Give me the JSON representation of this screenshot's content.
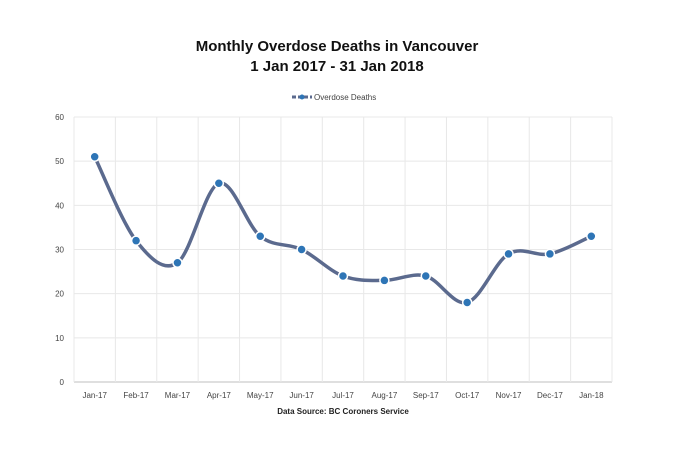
{
  "chart_data": {
    "type": "line",
    "title": "Monthly Overdose Deaths in Vancouver",
    "subtitle": "1 Jan 2017 - 31 Jan 2018",
    "xlabel": "Data Source: BC Coroners Service",
    "ylabel": "",
    "categories": [
      "Jan-17",
      "Feb-17",
      "Mar-17",
      "Apr-17",
      "May-17",
      "Jun-17",
      "Jul-17",
      "Aug-17",
      "Sep-17",
      "Oct-17",
      "Nov-17",
      "Dec-17",
      "Jan-18"
    ],
    "series": [
      {
        "name": "Overdose Deaths",
        "values": [
          51,
          32,
          27,
          45,
          33,
          30,
          24,
          23,
          24,
          18,
          29,
          29,
          33
        ],
        "line_color": "#5b6a8e",
        "marker_color": "#2e75b6"
      }
    ],
    "ylim": [
      0,
      60
    ],
    "yticks": [
      0,
      10,
      20,
      30,
      40,
      50,
      60
    ],
    "grid": true,
    "smooth": true,
    "legend_position": "top"
  }
}
